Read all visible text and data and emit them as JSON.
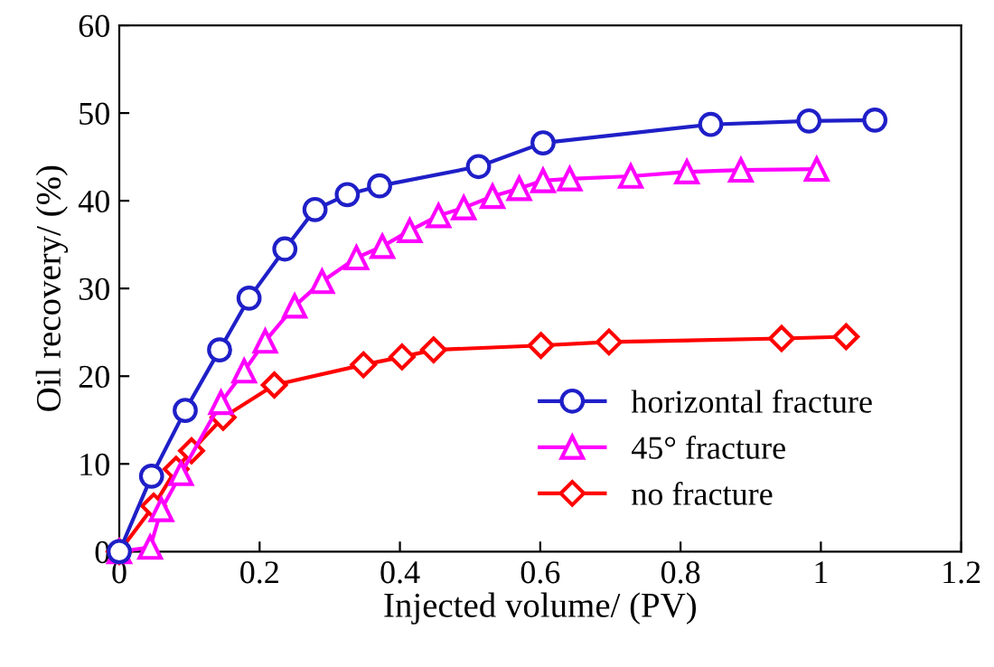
{
  "chart_data": {
    "type": "line",
    "xlabel": "Injected volume/ (PV)",
    "ylabel": "Oil recovery/ (%)",
    "xlim": [
      0,
      1.2
    ],
    "xticks": [
      0,
      0.2,
      0.4,
      0.6,
      0.8,
      1,
      1.2
    ],
    "ylim": [
      0,
      60
    ],
    "yticks": [
      0,
      10,
      20,
      30,
      40,
      50,
      60
    ],
    "grid": false,
    "legend": "lower right",
    "line_style": "solid",
    "series": [
      {
        "name": "horizontal fracture",
        "color": "#1f1fc8",
        "marker": "circle",
        "x": [
          0,
          0.046,
          0.094,
          0.143,
          0.185,
          0.236,
          0.279,
          0.325,
          0.371,
          0.512,
          0.604,
          0.843,
          0.983,
          1.077
        ],
        "values": [
          0,
          8.6,
          16.1,
          23.0,
          28.9,
          34.5,
          39.0,
          40.7,
          41.7,
          43.9,
          46.6,
          48.7,
          49.1,
          49.2
        ]
      },
      {
        "name": "45° fracture",
        "color": "#ff00ff",
        "marker": "triangle",
        "x": [
          0,
          0.044,
          0.06,
          0.088,
          0.145,
          0.178,
          0.208,
          0.25,
          0.289,
          0.338,
          0.375,
          0.414,
          0.455,
          0.491,
          0.532,
          0.57,
          0.604,
          0.642,
          0.729,
          0.809,
          0.886,
          0.994
        ],
        "values": [
          0,
          0.5,
          4.8,
          8.9,
          17.0,
          20.6,
          24.0,
          28.0,
          30.8,
          33.5,
          34.8,
          36.6,
          38.3,
          39.2,
          40.5,
          41.4,
          42.3,
          42.5,
          42.8,
          43.3,
          43.5,
          43.6
        ]
      },
      {
        "name": "no fracture",
        "color": "#ff0000",
        "marker": "diamond",
        "x": [
          0,
          0.049,
          0.081,
          0.103,
          0.148,
          0.221,
          0.348,
          0.403,
          0.448,
          0.601,
          0.698,
          0.944,
          1.036
        ],
        "values": [
          0,
          5.2,
          9.4,
          11.5,
          15.3,
          19.0,
          21.3,
          22.2,
          23.0,
          23.5,
          23.9,
          24.3,
          24.5
        ]
      }
    ]
  }
}
